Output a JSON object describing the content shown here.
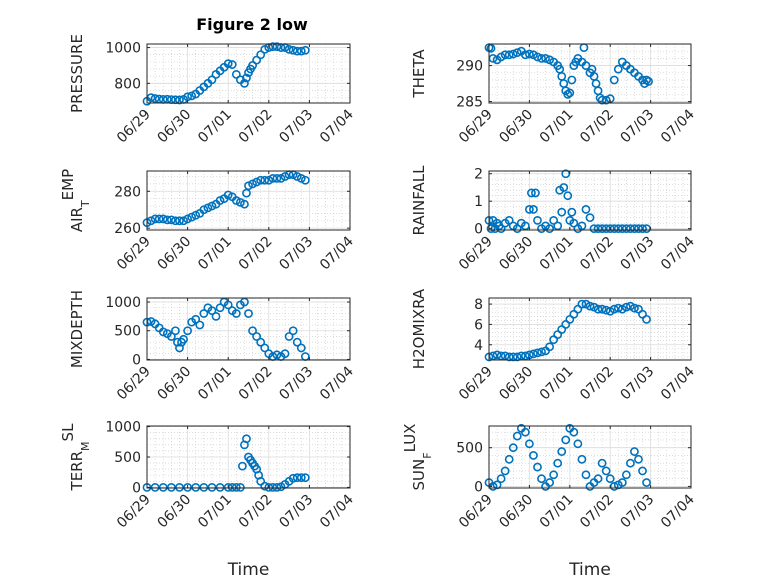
{
  "figure_title": "Figure 2 low",
  "colors": {
    "marker": "#0072bd",
    "axis": "#262626",
    "grid": "#c8c8c8"
  },
  "chart_data": [
    {
      "type": "scatter",
      "ylabel": "PRESSURE",
      "yticks": [
        800,
        1000
      ],
      "ylim": [
        690,
        1020
      ],
      "xlim": [
        0,
        5
      ],
      "xticks": [
        0,
        1,
        2,
        3,
        4,
        5
      ],
      "xticklabels": [
        "06/29",
        "06/30",
        "07/01",
        "07/02",
        "07/03",
        "07/04"
      ],
      "xlabel": "",
      "x": [
        0,
        0.1,
        0.2,
        0.3,
        0.4,
        0.5,
        0.6,
        0.7,
        0.8,
        0.9,
        1.0,
        1.1,
        1.2,
        1.3,
        1.4,
        1.5,
        1.6,
        1.7,
        1.8,
        1.9,
        2.0,
        2.1,
        2.2,
        2.3,
        2.4,
        2.45,
        2.5,
        2.55,
        2.6,
        2.7,
        2.8,
        2.9,
        3.0,
        3.1,
        3.2,
        3.3,
        3.4,
        3.5,
        3.6,
        3.7,
        3.8,
        3.9
      ],
      "y": [
        700,
        720,
        715,
        712,
        710,
        711,
        709,
        708,
        707,
        710,
        725,
        730,
        740,
        760,
        780,
        800,
        820,
        850,
        870,
        890,
        910,
        905,
        850,
        820,
        800,
        830,
        860,
        880,
        900,
        930,
        960,
        990,
        1000,
        1005,
        1005,
        1000,
        1000,
        990,
        985,
        980,
        980,
        985
      ]
    },
    {
      "type": "scatter",
      "ylabel": "THETA",
      "yticks": [
        285,
        290
      ],
      "ylim": [
        284.8,
        293
      ],
      "xlim": [
        0,
        5
      ],
      "xticks": [
        0,
        1,
        2,
        3,
        4,
        5
      ],
      "xticklabels": [
        "06/29",
        "06/30",
        "07/01",
        "07/02",
        "07/03",
        "07/04"
      ],
      "xlabel": "",
      "x": [
        0,
        0.05,
        0.1,
        0.2,
        0.3,
        0.4,
        0.5,
        0.6,
        0.7,
        0.8,
        0.9,
        1.0,
        1.1,
        1.2,
        1.3,
        1.4,
        1.5,
        1.6,
        1.7,
        1.75,
        1.8,
        1.85,
        1.9,
        1.95,
        2.0,
        2.05,
        2.1,
        2.15,
        2.2,
        2.3,
        2.35,
        2.4,
        2.5,
        2.55,
        2.6,
        2.65,
        2.7,
        2.75,
        2.8,
        2.9,
        3.0,
        3.1,
        3.2,
        3.3,
        3.4,
        3.5,
        3.6,
        3.7,
        3.8,
        3.85,
        3.9,
        3.95
      ],
      "y": [
        292.5,
        292.4,
        291,
        290.8,
        291.2,
        291.5,
        291.5,
        291.6,
        291.8,
        292,
        291.5,
        291.6,
        291.5,
        291.2,
        291,
        291,
        290.8,
        290.5,
        290,
        289.5,
        288.5,
        287.5,
        286.5,
        286,
        286.2,
        288,
        290,
        290.5,
        291,
        290.5,
        292.5,
        290,
        289,
        289.5,
        288.5,
        287.5,
        286.5,
        285.5,
        285.2,
        285.2,
        285.4,
        288,
        289.5,
        290.5,
        290,
        289.5,
        289,
        288.5,
        288,
        287.5,
        288,
        287.8
      ]
    },
    {
      "type": "scatter",
      "ylabel": "AIR_TEMP",
      "yticks": [
        260,
        280
      ],
      "ylim": [
        259,
        291
      ],
      "xlim": [
        0,
        5
      ],
      "xticks": [
        0,
        1,
        2,
        3,
        4,
        5
      ],
      "xticklabels": [
        "06/29",
        "06/30",
        "07/01",
        "07/02",
        "07/03",
        "07/04"
      ],
      "xlabel": "",
      "x": [
        0,
        0.1,
        0.2,
        0.3,
        0.4,
        0.5,
        0.6,
        0.7,
        0.8,
        0.9,
        1.0,
        1.1,
        1.2,
        1.3,
        1.4,
        1.5,
        1.6,
        1.7,
        1.8,
        1.9,
        2.0,
        2.1,
        2.2,
        2.3,
        2.4,
        2.45,
        2.5,
        2.6,
        2.7,
        2.8,
        2.9,
        3.0,
        3.1,
        3.2,
        3.3,
        3.4,
        3.5,
        3.6,
        3.7,
        3.8,
        3.9
      ],
      "y": [
        263,
        264,
        265,
        265,
        265,
        264.5,
        264.5,
        264,
        264,
        264,
        265,
        266,
        267,
        268,
        270,
        271,
        272,
        273,
        275,
        276,
        278,
        277,
        275,
        274,
        273,
        279,
        283,
        284,
        285,
        286,
        286,
        286,
        287,
        287,
        287,
        288,
        289,
        289,
        288,
        287,
        286
      ]
    },
    {
      "type": "scatter",
      "ylabel": "RAINFALL",
      "yticks": [
        0,
        1,
        2
      ],
      "ylim": [
        -0.05,
        2.1
      ],
      "xlim": [
        0,
        5
      ],
      "xticks": [
        0,
        1,
        2,
        3,
        4,
        5
      ],
      "xticklabels": [
        "06/29",
        "06/30",
        "07/01",
        "07/02",
        "07/03",
        "07/04"
      ],
      "xlabel": "",
      "x": [
        0,
        0.05,
        0.1,
        0.15,
        0.2,
        0.25,
        0.3,
        0.4,
        0.5,
        0.6,
        0.7,
        0.8,
        0.9,
        1.0,
        1.05,
        1.1,
        1.15,
        1.2,
        1.3,
        1.4,
        1.5,
        1.6,
        1.7,
        1.75,
        1.8,
        1.85,
        1.9,
        1.95,
        2.0,
        2.05,
        2.1,
        2.2,
        2.3,
        2.4,
        2.5,
        2.6,
        2.7,
        2.8,
        2.9,
        3.0,
        3.1,
        3.2,
        3.3,
        3.4,
        3.5,
        3.6,
        3.7,
        3.8,
        3.9
      ],
      "y": [
        0.3,
        0,
        0.3,
        0,
        0.2,
        0.1,
        0,
        0.2,
        0.3,
        0.1,
        0,
        0.2,
        0.1,
        0.7,
        1.3,
        0.7,
        1.3,
        0.3,
        0,
        0.1,
        0,
        0.3,
        0.1,
        1.4,
        0.6,
        1.5,
        2.0,
        1.2,
        0.3,
        0.6,
        0.2,
        0,
        0.1,
        0.7,
        0.4,
        0,
        0,
        0,
        0,
        0,
        0,
        0,
        0,
        0,
        0,
        0,
        0,
        0,
        0
      ]
    },
    {
      "type": "scatter",
      "ylabel": "MIXDEPTH",
      "yticks": [
        0,
        500,
        1000
      ],
      "ylim": [
        -10,
        1070
      ],
      "xlim": [
        0,
        5
      ],
      "xticks": [
        0,
        1,
        2,
        3,
        4,
        5
      ],
      "xticklabels": [
        "06/29",
        "06/30",
        "07/01",
        "07/02",
        "07/03",
        "07/04"
      ],
      "xlabel": "",
      "x": [
        0,
        0.1,
        0.2,
        0.3,
        0.4,
        0.5,
        0.6,
        0.7,
        0.75,
        0.8,
        0.85,
        0.9,
        1.0,
        1.1,
        1.2,
        1.3,
        1.4,
        1.5,
        1.6,
        1.7,
        1.8,
        1.9,
        2.0,
        2.1,
        2.2,
        2.3,
        2.4,
        2.5,
        2.6,
        2.7,
        2.8,
        2.9,
        3.0,
        3.1,
        3.2,
        3.3,
        3.4,
        3.5,
        3.6,
        3.7,
        3.8,
        3.9
      ],
      "y": [
        650,
        660,
        620,
        550,
        480,
        450,
        400,
        500,
        300,
        200,
        300,
        350,
        500,
        650,
        700,
        600,
        800,
        900,
        850,
        750,
        900,
        1000,
        950,
        850,
        800,
        950,
        1000,
        800,
        500,
        400,
        300,
        200,
        100,
        50,
        80,
        50,
        100,
        400,
        500,
        300,
        200,
        50
      ]
    },
    {
      "type": "scatter",
      "ylabel": "H2OMIXRA",
      "yticks": [
        4,
        6,
        8
      ],
      "ylim": [
        2.5,
        8.6
      ],
      "xlim": [
        0,
        5
      ],
      "xticks": [
        0,
        1,
        2,
        3,
        4,
        5
      ],
      "xticklabels": [
        "06/29",
        "06/30",
        "07/01",
        "07/02",
        "07/03",
        "07/04"
      ],
      "xlabel": "",
      "x": [
        0,
        0.1,
        0.2,
        0.3,
        0.4,
        0.5,
        0.6,
        0.7,
        0.8,
        0.9,
        1.0,
        1.1,
        1.2,
        1.3,
        1.4,
        1.5,
        1.6,
        1.7,
        1.8,
        1.9,
        2.0,
        2.1,
        2.2,
        2.3,
        2.4,
        2.5,
        2.6,
        2.7,
        2.8,
        2.9,
        3.0,
        3.1,
        3.2,
        3.3,
        3.4,
        3.5,
        3.6,
        3.7,
        3.8,
        3.9
      ],
      "y": [
        2.8,
        2.9,
        3.0,
        2.9,
        2.9,
        2.8,
        2.8,
        2.8,
        2.9,
        2.9,
        3.0,
        3.1,
        3.2,
        3.3,
        3.4,
        3.8,
        4.5,
        5.0,
        5.5,
        6.0,
        6.5,
        7.0,
        7.5,
        8.0,
        8.0,
        7.8,
        7.7,
        7.5,
        7.5,
        7.4,
        7.3,
        7.5,
        7.6,
        7.5,
        7.7,
        7.8,
        7.6,
        7.5,
        7.0,
        6.5
      ]
    },
    {
      "type": "scatter",
      "ylabel": "TERR_MSL",
      "yticks": [
        0,
        500,
        1000
      ],
      "ylim": [
        -10,
        1010
      ],
      "xlim": [
        0,
        5
      ],
      "xticks": [
        0,
        1,
        2,
        3,
        4,
        5
      ],
      "xticklabels": [
        "06/29",
        "06/30",
        "07/01",
        "07/02",
        "07/03",
        "07/04"
      ],
      "xlabel": "Time",
      "x": [
        0,
        0.2,
        0.4,
        0.6,
        0.8,
        1.0,
        1.2,
        1.4,
        1.6,
        1.8,
        2.0,
        2.1,
        2.2,
        2.3,
        2.35,
        2.4,
        2.45,
        2.5,
        2.55,
        2.6,
        2.65,
        2.7,
        2.75,
        2.8,
        2.9,
        3.0,
        3.1,
        3.2,
        3.3,
        3.4,
        3.5,
        3.6,
        3.7,
        3.8,
        3.9
      ],
      "y": [
        0,
        0,
        0,
        0,
        0,
        0,
        0,
        0,
        0,
        0,
        0,
        0,
        0,
        0,
        350,
        700,
        800,
        500,
        450,
        400,
        350,
        300,
        200,
        100,
        20,
        0,
        0,
        0,
        10,
        50,
        100,
        150,
        160,
        160,
        160
      ]
    },
    {
      "type": "scatter",
      "ylabel": "SUN_FLUX",
      "yticks": [
        0,
        500
      ],
      "ylim": [
        -20,
        780
      ],
      "xlim": [
        0,
        5
      ],
      "xticks": [
        0,
        1,
        2,
        3,
        4,
        5
      ],
      "xticklabels": [
        "06/29",
        "06/30",
        "07/01",
        "07/02",
        "07/03",
        "07/04"
      ],
      "xlabel": "Time",
      "x": [
        0,
        0.1,
        0.2,
        0.3,
        0.4,
        0.5,
        0.6,
        0.7,
        0.8,
        0.9,
        1.0,
        1.1,
        1.2,
        1.3,
        1.4,
        1.5,
        1.6,
        1.7,
        1.8,
        1.9,
        2.0,
        2.1,
        2.2,
        2.3,
        2.4,
        2.5,
        2.6,
        2.7,
        2.8,
        2.9,
        3.0,
        3.1,
        3.2,
        3.3,
        3.4,
        3.5,
        3.6,
        3.7,
        3.8,
        3.9
      ],
      "y": [
        50,
        0,
        20,
        100,
        200,
        350,
        500,
        650,
        750,
        700,
        550,
        400,
        250,
        100,
        0,
        50,
        150,
        300,
        450,
        600,
        750,
        700,
        550,
        350,
        150,
        0,
        50,
        100,
        300,
        200,
        100,
        0,
        20,
        50,
        150,
        300,
        450,
        350,
        200,
        50
      ]
    }
  ]
}
